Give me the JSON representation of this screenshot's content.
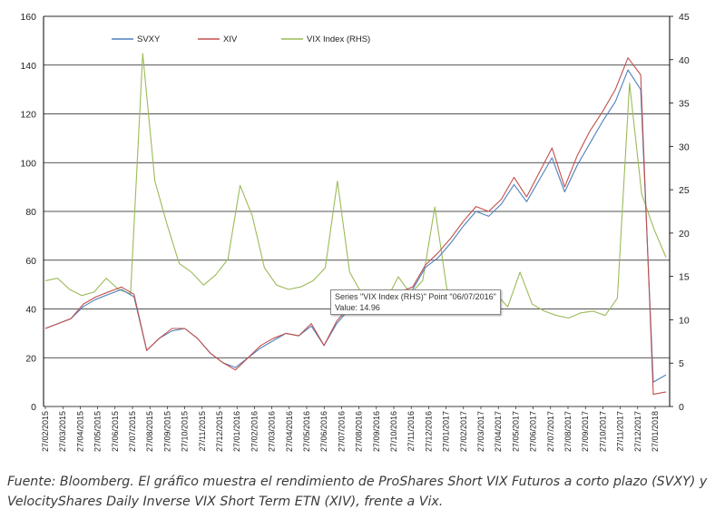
{
  "chart_data": {
    "type": "line",
    "title": "",
    "legend": [
      {
        "name": "SVXY",
        "color": "#4f81bd"
      },
      {
        "name": "XIV",
        "color": "#c0504d"
      },
      {
        "name": "VIX Index (RHS)",
        "color": "#9bbb59"
      }
    ],
    "legend_position": "top-left",
    "x_tick_labels": [
      "27/02/2015",
      "27/03/2015",
      "27/04/2015",
      "27/05/2015",
      "27/06/2015",
      "27/07/2015",
      "27/08/2015",
      "27/09/2015",
      "27/10/2015",
      "27/11/2015",
      "27/12/2015",
      "27/01/2016",
      "27/02/2016",
      "27/03/2016",
      "27/04/2016",
      "27/05/2016",
      "27/06/2016",
      "27/07/2016",
      "27/08/2016",
      "27/09/2016",
      "27/10/2016",
      "27/11/2016",
      "27/12/2016",
      "27/01/2017",
      "27/02/2017",
      "27/03/2017",
      "27/04/2017",
      "27/05/2017",
      "27/06/2017",
      "27/07/2017",
      "27/08/2017",
      "27/09/2017",
      "27/10/2017",
      "27/11/2017",
      "27/12/2017",
      "27/01/2018"
    ],
    "y_left": {
      "min": 0,
      "max": 160,
      "ticks": [
        0,
        20,
        40,
        60,
        80,
        100,
        120,
        140,
        160
      ]
    },
    "y_right": {
      "min": 0,
      "max": 45,
      "ticks": [
        0,
        5,
        10,
        15,
        20,
        25,
        30,
        35,
        40,
        45
      ]
    },
    "series": [
      {
        "name": "SVXY",
        "axis": "left",
        "color": "#4f81bd",
        "values": [
          32,
          34,
          36,
          41,
          44,
          46,
          48,
          45,
          23,
          28,
          31,
          32,
          28,
          22,
          18,
          16,
          20,
          24,
          27,
          30,
          29,
          33,
          25,
          34,
          40,
          42,
          39,
          43,
          46,
          48,
          57,
          61,
          67,
          74,
          80,
          78,
          83,
          91,
          84,
          93,
          102,
          88,
          99,
          108,
          117,
          125,
          138,
          130,
          10,
          13
        ]
      },
      {
        "name": "XIV",
        "axis": "left",
        "color": "#c0504d",
        "values": [
          32,
          34,
          36,
          42,
          45,
          47,
          49,
          46,
          23,
          28,
          32,
          32,
          28,
          22,
          18,
          15,
          20,
          25,
          28,
          30,
          29,
          34,
          25,
          35,
          41,
          43,
          40,
          44,
          47,
          49,
          58,
          63,
          69,
          76,
          82,
          80,
          85,
          94,
          86,
          96,
          106,
          90,
          103,
          113,
          121,
          130,
          143,
          136,
          5,
          6
        ]
      },
      {
        "name": "VIX Index (RHS)",
        "axis": "right",
        "color": "#9bbb59",
        "values": [
          14.5,
          14.8,
          13.5,
          12.8,
          13.2,
          14.8,
          13.5,
          13.0,
          40.7,
          26.0,
          21.0,
          16.5,
          15.5,
          14.0,
          15.2,
          17.0,
          25.5,
          22.0,
          16.0,
          14.0,
          13.5,
          13.8,
          14.5,
          16.0,
          26.0,
          15.5,
          13.0,
          12.8,
          12.2,
          14.96,
          13.0,
          14.5,
          23.0,
          13.5,
          12.5,
          11.5,
          12.0,
          13.0,
          11.5,
          15.5,
          11.8,
          11.0,
          10.5,
          10.2,
          10.8,
          11.0,
          10.5,
          12.5,
          37.3,
          24.5,
          20.5,
          17.2
        ]
      }
    ],
    "tooltip": {
      "line1": "Series \"VIX Index (RHS)\" Point \"06/07/2016\"",
      "line2": "Value: 14.96"
    }
  },
  "caption": "Fuente: Bloomberg. El gráfico muestra el rendimiento de ProShares Short VIX Futuros a corto plazo (SVXY) y VelocityShares Daily Inverse VIX Short Term ETN (XIV), frente a Vix."
}
